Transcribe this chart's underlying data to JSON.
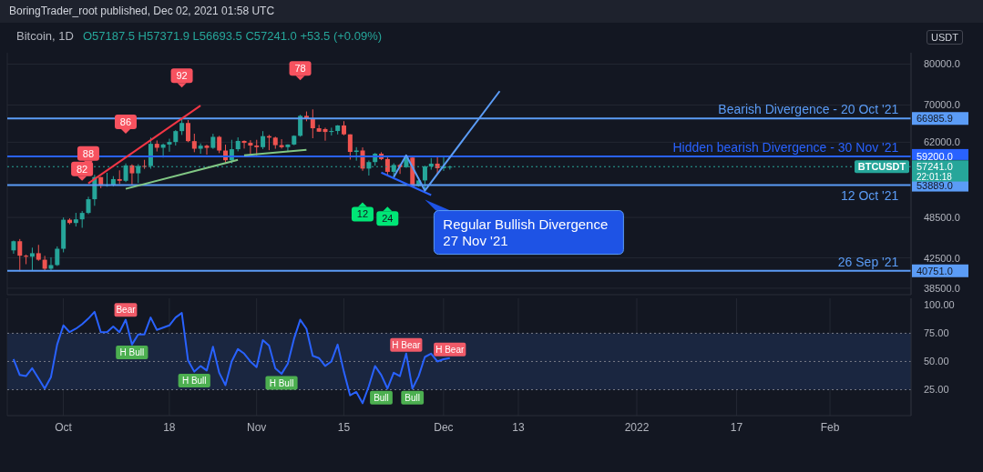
{
  "chart_data": [
    {
      "type": "candlestick",
      "title": "Bitcoin, 1D",
      "subtitle": "O57187.5 H57371.9 L56693.5 C57241.0 +53.5 (+0.09%)",
      "ylabel": "USDT",
      "x": [
        "2021-09-23",
        "2021-09-24",
        "2021-09-25",
        "2021-09-26",
        "2021-09-27",
        "2021-09-28",
        "2021-09-29",
        "2021-09-30",
        "2021-10-01",
        "2021-10-02",
        "2021-10-03",
        "2021-10-04",
        "2021-10-05",
        "2021-10-06",
        "2021-10-07",
        "2021-10-08",
        "2021-10-09",
        "2021-10-10",
        "2021-10-11",
        "2021-10-12",
        "2021-10-13",
        "2021-10-14",
        "2021-10-15",
        "2021-10-16",
        "2021-10-17",
        "2021-10-18",
        "2021-10-19",
        "2021-10-20",
        "2021-10-21",
        "2021-10-22",
        "2021-10-23",
        "2021-10-24",
        "2021-10-25",
        "2021-10-26",
        "2021-10-27",
        "2021-10-28",
        "2021-10-29",
        "2021-10-30",
        "2021-10-31",
        "2021-11-01",
        "2021-11-02",
        "2021-11-03",
        "2021-11-04",
        "2021-11-05",
        "2021-11-06",
        "2021-11-07",
        "2021-11-08",
        "2021-11-09",
        "2021-11-10",
        "2021-11-11",
        "2021-11-12",
        "2021-11-13",
        "2021-11-14",
        "2021-11-15",
        "2021-11-16",
        "2021-11-17",
        "2021-11-18",
        "2021-11-19",
        "2021-11-20",
        "2021-11-21",
        "2021-11-22",
        "2021-11-23",
        "2021-11-24",
        "2021-11-25",
        "2021-11-26",
        "2021-11-27",
        "2021-11-28",
        "2021-11-29",
        "2021-11-30",
        "2021-12-01",
        "2021-12-02"
      ],
      "ohlc": [
        [
          43560,
          44980,
          43080,
          44880
        ],
        [
          44880,
          45200,
          40680,
          42810
        ],
        [
          42810,
          42970,
          41640,
          42670
        ],
        [
          42670,
          43950,
          40750,
          43160
        ],
        [
          43160,
          44350,
          42100,
          42250
        ],
        [
          42250,
          42790,
          40830,
          41030
        ],
        [
          41030,
          42590,
          40750,
          41520
        ],
        [
          41520,
          44130,
          41400,
          43790
        ],
        [
          43790,
          48500,
          43280,
          48140
        ],
        [
          48140,
          48360,
          47430,
          47630
        ],
        [
          47630,
          49230,
          47090,
          48200
        ],
        [
          48200,
          49530,
          46890,
          49220
        ],
        [
          49220,
          51890,
          49020,
          51470
        ],
        [
          51470,
          55750,
          50380,
          55320
        ],
        [
          55320,
          55340,
          53360,
          53790
        ],
        [
          53790,
          56100,
          53620,
          53950
        ],
        [
          53950,
          55490,
          53660,
          54960
        ],
        [
          54960,
          56560,
          54090,
          54660
        ],
        [
          54660,
          57840,
          54420,
          57470
        ],
        [
          57470,
          57680,
          53880,
          56010
        ],
        [
          56010,
          57700,
          54260,
          57370
        ],
        [
          57370,
          58530,
          56820,
          57350
        ],
        [
          57350,
          62930,
          56850,
          61670
        ],
        [
          61670,
          62350,
          60150,
          60880
        ],
        [
          60880,
          61720,
          58960,
          61530
        ],
        [
          61530,
          62700,
          60100,
          62040
        ],
        [
          62040,
          64490,
          61320,
          64280
        ],
        [
          64280,
          67000,
          63480,
          66000
        ],
        [
          66000,
          66640,
          62000,
          62210
        ],
        [
          62210,
          63730,
          60000,
          60690
        ],
        [
          60690,
          61750,
          59700,
          61290
        ],
        [
          61290,
          61490,
          59520,
          60860
        ],
        [
          60860,
          63710,
          60650,
          63080
        ],
        [
          63080,
          63290,
          59820,
          60330
        ],
        [
          60330,
          61500,
          58000,
          58450
        ],
        [
          58450,
          62480,
          57820,
          60590
        ],
        [
          60590,
          62980,
          60170,
          62250
        ],
        [
          62250,
          62360,
          60720,
          61860
        ],
        [
          61860,
          62400,
          59500,
          61320
        ],
        [
          61320,
          62480,
          59400,
          61000
        ],
        [
          61000,
          64270,
          60620,
          63230
        ],
        [
          63230,
          63500,
          60400,
          62930
        ],
        [
          62930,
          63120,
          60680,
          61400
        ],
        [
          61400,
          62600,
          60720,
          61000
        ],
        [
          61000,
          61560,
          60100,
          61530
        ],
        [
          61530,
          63400,
          61380,
          63300
        ],
        [
          63300,
          67790,
          63110,
          67550
        ],
        [
          67550,
          68530,
          66380,
          66940
        ],
        [
          66940,
          69000,
          62800,
          64880
        ],
        [
          64880,
          65600,
          64100,
          64160
        ],
        [
          64700,
          65000,
          62300,
          64100
        ],
        [
          64100,
          65000,
          63360,
          64300
        ],
        [
          64300,
          65550,
          63580,
          65470
        ],
        [
          65470,
          66400,
          63400,
          63600
        ],
        [
          63600,
          63600,
          58570,
          60060
        ],
        [
          60060,
          61000,
          58370,
          60340
        ],
        [
          60340,
          60950,
          56470,
          56880
        ],
        [
          56880,
          58400,
          55600,
          58100
        ],
        [
          58100,
          59850,
          57410,
          59700
        ],
        [
          59700,
          60000,
          58470,
          58680
        ],
        [
          58680,
          59300,
          55630,
          56280
        ],
        [
          56280,
          57880,
          55300,
          57560
        ],
        [
          57560,
          57800,
          55900,
          57150
        ],
        [
          57150,
          59400,
          57000,
          58960
        ],
        [
          58960,
          59170,
          53500,
          53730
        ],
        [
          53730,
          55300,
          53610,
          54720
        ],
        [
          54720,
          57450,
          53250,
          57270
        ],
        [
          57270,
          58870,
          56680,
          57800
        ],
        [
          57800,
          59200,
          55880,
          56950
        ],
        [
          56950,
          59050,
          56450,
          57190
        ],
        [
          57187.5,
          57371.9,
          56693.5,
          57241.0
        ]
      ],
      "colors": [
        "#26a69a",
        "#ef5350",
        "#ef5350",
        "#26a69a",
        "#ef5350",
        "#ef5350",
        "#26a69a",
        "#26a69a",
        "#26a69a",
        "#ef5350",
        "#26a69a",
        "#26a69a",
        "#26a69a",
        "#26a69a",
        "#ef5350",
        "#26a69a",
        "#26a69a",
        "#ef5350",
        "#26a69a",
        "#ef5350",
        "#26a69a",
        "#ef5350",
        "#26a69a",
        "#ef5350",
        "#26a69a",
        "#26a69a",
        "#26a69a",
        "#26a69a",
        "#ef5350",
        "#ef5350",
        "#26a69a",
        "#ef5350",
        "#26a69a",
        "#ef5350",
        "#ef5350",
        "#26a69a",
        "#26a69a",
        "#ef5350",
        "#ef5350",
        "#ef5350",
        "#26a69a",
        "#ef5350",
        "#ef5350",
        "#ef5350",
        "#26a69a",
        "#26a69a",
        "#26a69a",
        "#ef5350",
        "#ef5350",
        "#ef5350",
        "#ef5350",
        "#26a69a",
        "#26a69a",
        "#ef5350",
        "#ef5350",
        "#26a69a",
        "#ef5350",
        "#26a69a",
        "#26a69a",
        "#ef5350",
        "#ef5350",
        "#26a69a",
        "#ef5350",
        "#26a69a",
        "#ef5350",
        "#26a69a",
        "#26a69a",
        "#26a69a",
        "#ef5350",
        "#26a69a",
        "#26a69a"
      ],
      "series": [
        {
          "type": "line",
          "color": "#f23645",
          "x": [
            "2021-10-05",
            "2021-10-23"
          ],
          "values": [
            54200,
            69850
          ]
        },
        {
          "type": "line",
          "color": "#81c784",
          "x": [
            "2021-10-11",
            "2021-10-29"
          ],
          "values": [
            53250,
            58520
          ]
        },
        {
          "type": "line",
          "color": "#81c784",
          "x": [
            "2021-10-30",
            "2021-11-09"
          ],
          "values": [
            59390,
            60450
          ]
        },
        {
          "type": "line",
          "color": "#2962ff",
          "x": [
            "2021-11-21",
            "2021-11-29"
          ],
          "values": [
            56150,
            52170
          ]
        },
        {
          "type": "line",
          "color": "#5b9cf6",
          "x": [
            "2021-11-23",
            "2021-11-25",
            "2021-11-28",
            "2021-12-10"
          ],
          "values": [
            55330,
            59390,
            52940,
            73220
          ]
        }
      ],
      "ylim": [
        37700,
        83000
      ],
      "log": "y",
      "yticks": [
        {
          "value": 38500,
          "label": "38500.0"
        },
        {
          "value": 42500,
          "label": "42500.0"
        },
        {
          "value": 48500,
          "label": "48500.0"
        },
        {
          "value": 62000,
          "label": "62000.0"
        },
        {
          "value": 70000,
          "label": "70000.0"
        },
        {
          "value": 80000,
          "label": "80000.0"
        }
      ],
      "xlim": [
        "2021-09-22",
        "2022-02-14"
      ],
      "xticks": [
        {
          "value": "2021-10-01",
          "label": null
        },
        {
          "value": "2021-10-18",
          "label": null
        },
        {
          "value": "2021-11-01",
          "label": null
        },
        {
          "value": "2021-11-15",
          "label": null
        },
        {
          "value": "2021-12-01",
          "label": null
        },
        {
          "value": "2021-12-13",
          "label": null
        },
        {
          "value": "2022-01-01",
          "label": null
        },
        {
          "value": "2022-01-17",
          "label": null
        },
        {
          "value": "2022-02-01",
          "label": null
        }
      ],
      "tick_labels": "y",
      "grid": true,
      "ref_lines": [
        {
          "axis": "y",
          "value": 66985.9,
          "label": "66985.9",
          "color": "#5b9cf6",
          "line_style": "solid"
        },
        {
          "axis": "y",
          "value": 59200.0,
          "label": "59200.0",
          "color": "#2962ff",
          "line_style": "solid"
        },
        {
          "axis": "y",
          "value": 57241.0,
          "label": "57241.0",
          "color": "#26a69a",
          "line_style": "dotted"
        },
        {
          "axis": "y",
          "value": 53889.0,
          "label": "53889.0",
          "color": "#5b9cf6",
          "line_style": "solid"
        },
        {
          "axis": "y",
          "value": 40751.0,
          "label": "40751.0",
          "color": "#5b9cf6",
          "line_style": "solid"
        }
      ],
      "annotations": [
        "BoringTrader_root published, Dec 02, 2021 01:58 UTC",
        "22:01:18",
        {
          "text": "Bearish Divergence - 20 Oct '21",
          "x": "2022-02-12",
          "y": 66985.9
        },
        {
          "text": "Hidden bearish Divergence - 30 Nov '21",
          "x": "2022-02-12",
          "y": 59200.0
        },
        {
          "text": "BTCUSDT",
          "x": "2022-02-14",
          "y": 57241.0
        },
        {
          "text": "12 Oct '21",
          "x": "2022-02-12",
          "y": 53889.0
        },
        {
          "text": "26 Sep '21",
          "x": "2022-02-12",
          "y": 40751.0
        },
        {
          "text": "82",
          "x": "2021-10-04",
          "y": 56820
        },
        {
          "text": "88",
          "x": "2021-10-05",
          "y": 59760
        },
        {
          "text": "86",
          "x": "2021-10-11",
          "y": 66250
        },
        {
          "text": "92",
          "x": "2021-10-20",
          "y": 76990
        },
        {
          "text": "78",
          "x": "2021-11-08",
          "y": 78830
        },
        {
          "text": "12",
          "x": "2021-11-18",
          "y": 49030
        },
        {
          "text": "24",
          "x": "2021-11-22",
          "y": 48320
        },
        {
          "text": "Regular Bullish Divergence\n27 Nov '21",
          "x": "2021-11-28",
          "y": 52940
        }
      ]
    },
    {
      "type": "line",
      "x": [
        "2021-09-23",
        "2021-09-24",
        "2021-09-25",
        "2021-09-26",
        "2021-09-27",
        "2021-09-28",
        "2021-09-29",
        "2021-09-30",
        "2021-10-01",
        "2021-10-02",
        "2021-10-03",
        "2021-10-04",
        "2021-10-05",
        "2021-10-06",
        "2021-10-07",
        "2021-10-08",
        "2021-10-09",
        "2021-10-10",
        "2021-10-11",
        "2021-10-12",
        "2021-10-13",
        "2021-10-14",
        "2021-10-15",
        "2021-10-16",
        "2021-10-17",
        "2021-10-18",
        "2021-10-19",
        "2021-10-20",
        "2021-10-21",
        "2021-10-22",
        "2021-10-23",
        "2021-10-24",
        "2021-10-25",
        "2021-10-26",
        "2021-10-27",
        "2021-10-28",
        "2021-10-29",
        "2021-10-30",
        "2021-10-31",
        "2021-11-01",
        "2021-11-02",
        "2021-11-03",
        "2021-11-04",
        "2021-11-05",
        "2021-11-06",
        "2021-11-07",
        "2021-11-08",
        "2021-11-09",
        "2021-11-10",
        "2021-11-11",
        "2021-11-12",
        "2021-11-13",
        "2021-11-14",
        "2021-11-15",
        "2021-11-16",
        "2021-11-17",
        "2021-11-18",
        "2021-11-19",
        "2021-11-20",
        "2021-11-21",
        "2021-11-22",
        "2021-11-23",
        "2021-11-24",
        "2021-11-25",
        "2021-11-26",
        "2021-11-27",
        "2021-11-28",
        "2021-11-29",
        "2021-11-30",
        "2021-12-01",
        "2021-12-02"
      ],
      "values": [
        52,
        38,
        37,
        44,
        35,
        26,
        36,
        65,
        82,
        76,
        79,
        83,
        88,
        94,
        76,
        76,
        81,
        76,
        87,
        65,
        74,
        74,
        89,
        78,
        80,
        82,
        89,
        93,
        51,
        41,
        46,
        42,
        63,
        40,
        29,
        50,
        61,
        57,
        50,
        45,
        69,
        64,
        44,
        39,
        48,
        70,
        87,
        79,
        55,
        53,
        46,
        50,
        65,
        41,
        20,
        23,
        13,
        28,
        46,
        38,
        26,
        40,
        37,
        57,
        26,
        37,
        54,
        57,
        50,
        52,
        53
      ],
      "color": "#2962ff",
      "ylim": [
        2,
        106
      ],
      "yticks": [
        {
          "value": 25,
          "label": "25.00"
        },
        {
          "value": 50,
          "label": "50.00"
        },
        {
          "value": 75,
          "label": "75.00"
        },
        {
          "value": 100,
          "label": "100.00"
        }
      ],
      "xlim": [
        "2021-09-22",
        "2022-02-14"
      ],
      "xticks": [
        {
          "value": "2021-10-01",
          "label": "Oct"
        },
        {
          "value": "2021-10-18",
          "label": "18"
        },
        {
          "value": "2021-11-01",
          "label": "Nov"
        },
        {
          "value": "2021-11-15",
          "label": "15"
        },
        {
          "value": "2021-12-01",
          "label": "Dec"
        },
        {
          "value": "2021-12-13",
          "label": "13"
        },
        {
          "value": "2022-01-01",
          "label": "2022"
        },
        {
          "value": "2022-01-17",
          "label": "17"
        },
        {
          "value": "2022-02-01",
          "label": "Feb"
        }
      ],
      "grid": "x",
      "bands": [
        {
          "axis": "y",
          "from": 25,
          "to": 75,
          "color": "#1a2640"
        }
      ],
      "ref_lines": [
        {
          "axis": "y",
          "value": 25,
          "color": "#787b86",
          "line_style": "dotted"
        },
        {
          "axis": "y",
          "value": 50,
          "color": "#787b86",
          "line_style": "dotted"
        },
        {
          "axis": "y",
          "value": 75,
          "color": "#787b86",
          "line_style": "dotted"
        }
      ],
      "annotations": [
        {
          "text": "Bear",
          "x": "2021-10-11",
          "y": 88
        },
        {
          "text": "H Bull",
          "x": "2021-10-12",
          "y": 64
        },
        {
          "text": "H Bull",
          "x": "2021-10-22",
          "y": 39
        },
        {
          "text": "H Bull",
          "x": "2021-11-05",
          "y": 37
        },
        {
          "text": "H Bear",
          "x": "2021-11-25",
          "y": 57
        },
        {
          "text": "H Bear",
          "x": "2021-12-02",
          "y": 53
        },
        {
          "text": "Bull",
          "x": "2021-11-21",
          "y": 24
        },
        {
          "text": "Bull",
          "x": "2021-11-26",
          "y": 24
        }
      ]
    }
  ]
}
